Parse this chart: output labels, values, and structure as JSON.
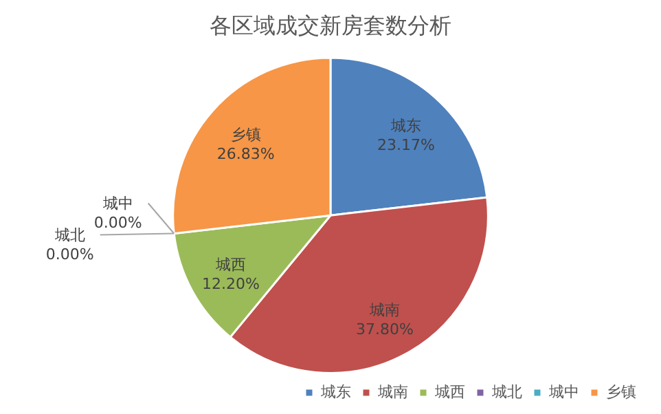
{
  "chart_data": {
    "type": "pie",
    "title": "各区域成交新房套数分析",
    "categories": [
      "城东",
      "城南",
      "城西",
      "城北",
      "城中",
      "乡镇"
    ],
    "values": [
      23.17,
      37.8,
      12.2,
      0,
      0,
      26.83
    ],
    "value_labels": [
      "23.17%",
      "37.80%",
      "12.20%",
      "0.00%",
      "0.00%",
      "26.83%"
    ],
    "colors": [
      "#4f81bd",
      "#c0504d",
      "#9bbb59",
      "#8064a2",
      "#4bacc6",
      "#f79646"
    ],
    "legend": "bottom right"
  }
}
